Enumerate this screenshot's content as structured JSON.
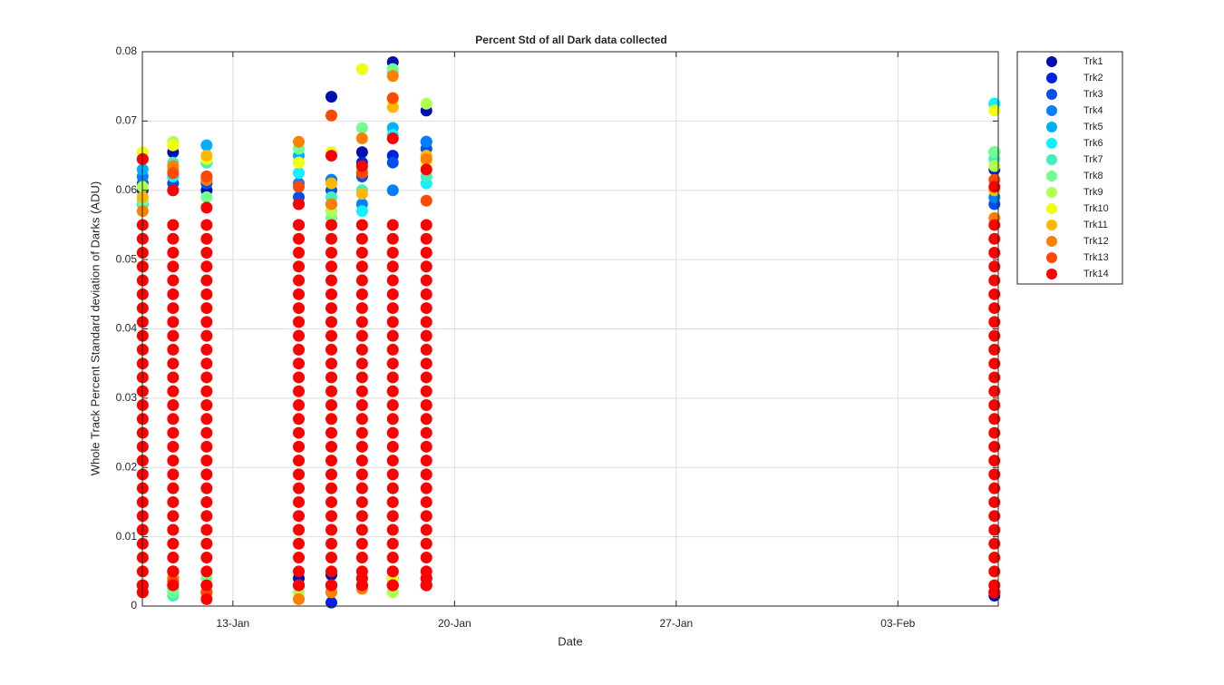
{
  "chart_data": {
    "type": "scatter",
    "title": "Percent Std of all Dark data collected",
    "x_label": "Date",
    "y_label": "Whole Track Percent Standard deviation of Darks (ADU)",
    "xlim": [
      10.14,
      37.17
    ],
    "xticks": [
      {
        "value": 13,
        "label": "13-Jan"
      },
      {
        "value": 20,
        "label": "20-Jan"
      },
      {
        "value": 27,
        "label": "27-Jan"
      },
      {
        "value": 34,
        "label": "03-Feb"
      }
    ],
    "ylim": [
      0,
      0.08
    ],
    "yticks": [
      0,
      0.01,
      0.02,
      0.03,
      0.04,
      0.05,
      0.06,
      0.07,
      0.08
    ],
    "grid": true,
    "legend": "outside-right",
    "series": [
      {
        "name": "Trk1",
        "color": "#0010b0",
        "x": [
          10.15,
          10.15,
          11.11,
          11.11,
          12.17,
          12.17,
          15.08,
          15.08,
          16.11,
          16.11,
          17.08,
          17.08,
          18.05,
          18.05,
          19.11,
          19.11,
          37.05,
          37.05
        ],
        "values": [
          0.058,
          0.003,
          0.0655,
          0.004,
          0.06,
          0.003,
          0.055,
          0.004,
          0.0735,
          0.0045,
          0.0655,
          0.003,
          0.0785,
          0.003,
          0.0715,
          0.004,
          0.0655,
          0.0015
        ]
      },
      {
        "name": "Trk2",
        "color": "#0022e0",
        "x": [
          10.15,
          10.15,
          11.11,
          11.11,
          12.17,
          12.17,
          15.08,
          15.08,
          16.11,
          16.11,
          17.08,
          17.08,
          18.05,
          18.05,
          19.11,
          19.11,
          37.05,
          37.05
        ],
        "values": [
          0.06,
          0.003,
          0.062,
          0.005,
          0.062,
          0.002,
          0.058,
          0.003,
          0.0615,
          0.0005,
          0.064,
          0.004,
          0.065,
          0.004,
          0.067,
          0.003,
          0.063,
          0.002
        ]
      },
      {
        "name": "Trk3",
        "color": "#0050f0",
        "x": [
          10.15,
          10.15,
          11.11,
          11.11,
          12.17,
          12.17,
          15.08,
          15.08,
          16.11,
          16.11,
          17.08,
          17.08,
          18.05,
          18.05,
          19.11,
          19.11,
          37.05,
          37.05
        ],
        "values": [
          0.061,
          0.003,
          0.061,
          0.003,
          0.061,
          0.003,
          0.059,
          0.003,
          0.06,
          0.002,
          0.062,
          0.004,
          0.064,
          0.005,
          0.066,
          0.003,
          0.058,
          0.002
        ]
      },
      {
        "name": "Trk4",
        "color": "#0080ff",
        "x": [
          10.15,
          10.15,
          11.11,
          11.11,
          12.17,
          12.17,
          15.08,
          15.08,
          16.11,
          16.11,
          17.08,
          17.08,
          18.05,
          18.05,
          19.11,
          19.11,
          37.05,
          37.05
        ],
        "values": [
          0.062,
          0.003,
          0.06,
          0.003,
          0.0615,
          0.003,
          0.061,
          0.003,
          0.0615,
          0.003,
          0.058,
          0.004,
          0.06,
          0.004,
          0.067,
          0.003,
          0.059,
          0.003
        ]
      },
      {
        "name": "Trk5",
        "color": "#00b0ff",
        "x": [
          10.15,
          10.15,
          11.11,
          11.11,
          12.17,
          12.17,
          15.08,
          15.08,
          16.11,
          16.11,
          17.08,
          17.08,
          18.05,
          18.05,
          19.11,
          19.11,
          37.05,
          37.05
        ],
        "values": [
          0.063,
          0.002,
          0.063,
          0.002,
          0.0665,
          0.003,
          0.065,
          0.003,
          0.058,
          0.003,
          0.063,
          0.004,
          0.069,
          0.003,
          0.064,
          0.003,
          0.0725,
          0.003
        ]
      },
      {
        "name": "Trk6",
        "color": "#10f0ff",
        "x": [
          10.15,
          10.15,
          11.11,
          11.11,
          12.17,
          12.17,
          15.08,
          15.08,
          16.11,
          16.11,
          17.08,
          17.08,
          18.05,
          18.05,
          19.11,
          19.11,
          37.05,
          37.05
        ],
        "values": [
          0.059,
          0.003,
          0.062,
          0.0025,
          0.064,
          0.003,
          0.0625,
          0.003,
          0.057,
          0.002,
          0.057,
          0.003,
          0.068,
          0.003,
          0.061,
          0.003,
          0.0725,
          0.003
        ]
      },
      {
        "name": "Trk7",
        "color": "#40f0c0",
        "x": [
          10.15,
          10.15,
          11.11,
          11.11,
          12.17,
          12.17,
          15.08,
          15.08,
          16.11,
          16.11,
          17.08,
          17.08,
          18.05,
          18.05,
          19.11,
          19.11,
          37.05,
          37.05
        ],
        "values": [
          0.058,
          0.003,
          0.064,
          0.0015,
          0.064,
          0.003,
          0.064,
          0.003,
          0.059,
          0.003,
          0.06,
          0.004,
          0.077,
          0.003,
          0.062,
          0.003,
          0.0645,
          0.003
        ]
      },
      {
        "name": "Trk8",
        "color": "#70ff90",
        "x": [
          10.15,
          10.15,
          11.11,
          11.11,
          12.17,
          12.17,
          15.08,
          15.08,
          16.11,
          16.11,
          17.08,
          17.08,
          18.05,
          18.05,
          19.11,
          19.11,
          37.05,
          37.05
        ],
        "values": [
          0.0585,
          0.003,
          0.0665,
          0.002,
          0.059,
          0.004,
          0.066,
          0.003,
          0.056,
          0.003,
          0.069,
          0.004,
          0.0775,
          0.002,
          0.063,
          0.003,
          0.0655,
          0.003
        ]
      },
      {
        "name": "Trk9",
        "color": "#b0ff50",
        "x": [
          10.15,
          10.15,
          11.11,
          11.11,
          12.17,
          12.17,
          15.08,
          15.08,
          16.11,
          16.11,
          17.08,
          17.08,
          18.05,
          18.05,
          19.11,
          19.11,
          37.05,
          37.05
        ],
        "values": [
          0.0605,
          0.003,
          0.067,
          0.003,
          0.0645,
          0.003,
          0.064,
          0.002,
          0.057,
          0.003,
          0.063,
          0.003,
          0.073,
          0.002,
          0.0725,
          0.003,
          0.0635,
          0.003
        ]
      },
      {
        "name": "Trk10",
        "color": "#f0ff10",
        "x": [
          10.15,
          10.15,
          11.11,
          11.11,
          12.17,
          12.17,
          15.08,
          15.08,
          16.11,
          16.11,
          17.08,
          17.08,
          18.05,
          18.05,
          19.11,
          19.11,
          37.05,
          37.05
        ],
        "values": [
          0.0655,
          0.003,
          0.0665,
          0.003,
          0.0645,
          0.003,
          0.064,
          0.003,
          0.0655,
          0.003,
          0.0775,
          0.004,
          0.073,
          0.004,
          0.064,
          0.003,
          0.0715,
          0.003
        ]
      },
      {
        "name": "Trk11",
        "color": "#ffb800",
        "x": [
          10.15,
          10.15,
          11.11,
          11.11,
          12.17,
          12.17,
          15.08,
          15.08,
          16.11,
          16.11,
          17.08,
          17.08,
          18.05,
          18.05,
          19.11,
          19.11,
          37.05,
          37.05
        ],
        "values": [
          0.059,
          0.002,
          0.063,
          0.003,
          0.065,
          0.002,
          0.058,
          0.001,
          0.061,
          0.003,
          0.0595,
          0.004,
          0.072,
          0.003,
          0.065,
          0.003,
          0.06,
          0.002
        ]
      },
      {
        "name": "Trk12",
        "color": "#ff8000",
        "x": [
          10.15,
          10.15,
          11.11,
          11.11,
          12.17,
          12.17,
          15.08,
          15.08,
          16.11,
          16.11,
          17.08,
          17.08,
          18.05,
          18.05,
          19.11,
          19.11,
          37.05,
          37.05
        ],
        "values": [
          0.057,
          0.003,
          0.0635,
          0.004,
          0.0615,
          0.002,
          0.067,
          0.001,
          0.058,
          0.002,
          0.0675,
          0.0025,
          0.0765,
          0.003,
          0.0645,
          0.003,
          0.056,
          0.002
        ]
      },
      {
        "name": "Trk13",
        "color": "#ff4800",
        "x": [
          10.15,
          10.15,
          11.11,
          11.11,
          12.17,
          12.17,
          15.08,
          15.08,
          16.11,
          16.11,
          17.08,
          17.08,
          18.05,
          18.05,
          19.11,
          19.11,
          37.05,
          37.05
        ],
        "values": [
          0.0645,
          0.003,
          0.0625,
          0.0035,
          0.062,
          0.002,
          0.0605,
          0.003,
          0.0708,
          0.003,
          0.0625,
          0.003,
          0.0733,
          0.003,
          0.0585,
          0.003,
          0.0615,
          0.002
        ]
      },
      {
        "name": "Trk14",
        "color": "#ff0000",
        "x": [
          10.15,
          10.15,
          10.15,
          10.15,
          10.15,
          10.15,
          10.15,
          10.15,
          10.15,
          10.15,
          10.15,
          10.15,
          10.15,
          10.15,
          10.15,
          10.15,
          10.15,
          10.15,
          10.15,
          10.15,
          10.15,
          10.15,
          10.15,
          10.15,
          10.15,
          10.15,
          10.15,
          10.15,
          10.15,
          11.11,
          11.11,
          11.11,
          11.11,
          11.11,
          11.11,
          11.11,
          11.11,
          11.11,
          11.11,
          11.11,
          11.11,
          11.11,
          11.11,
          11.11,
          11.11,
          11.11,
          11.11,
          11.11,
          11.11,
          11.11,
          11.11,
          11.11,
          11.11,
          11.11,
          11.11,
          11.11,
          11.11,
          11.11,
          12.17,
          12.17,
          12.17,
          12.17,
          12.17,
          12.17,
          12.17,
          12.17,
          12.17,
          12.17,
          12.17,
          12.17,
          12.17,
          12.17,
          12.17,
          12.17,
          12.17,
          12.17,
          12.17,
          12.17,
          12.17,
          12.17,
          12.17,
          12.17,
          12.17,
          12.17,
          12.17,
          12.17,
          12.17,
          15.08,
          15.08,
          15.08,
          15.08,
          15.08,
          15.08,
          15.08,
          15.08,
          15.08,
          15.08,
          15.08,
          15.08,
          15.08,
          15.08,
          15.08,
          15.08,
          15.08,
          15.08,
          15.08,
          15.08,
          15.08,
          15.08,
          15.08,
          15.08,
          15.08,
          15.08,
          15.08,
          15.08,
          15.08,
          16.11,
          16.11,
          16.11,
          16.11,
          16.11,
          16.11,
          16.11,
          16.11,
          16.11,
          16.11,
          16.11,
          16.11,
          16.11,
          16.11,
          16.11,
          16.11,
          16.11,
          16.11,
          16.11,
          16.11,
          16.11,
          16.11,
          16.11,
          16.11,
          16.11,
          16.11,
          16.11,
          16.11,
          16.11,
          17.08,
          17.08,
          17.08,
          17.08,
          17.08,
          17.08,
          17.08,
          17.08,
          17.08,
          17.08,
          17.08,
          17.08,
          17.08,
          17.08,
          17.08,
          17.08,
          17.08,
          17.08,
          17.08,
          17.08,
          17.08,
          17.08,
          17.08,
          17.08,
          17.08,
          17.08,
          17.08,
          17.08,
          17.08,
          18.05,
          18.05,
          18.05,
          18.05,
          18.05,
          18.05,
          18.05,
          18.05,
          18.05,
          18.05,
          18.05,
          18.05,
          18.05,
          18.05,
          18.05,
          18.05,
          18.05,
          18.05,
          18.05,
          18.05,
          18.05,
          18.05,
          18.05,
          18.05,
          18.05,
          18.05,
          18.05,
          18.05,
          18.05,
          19.11,
          19.11,
          19.11,
          19.11,
          19.11,
          19.11,
          19.11,
          19.11,
          19.11,
          19.11,
          19.11,
          19.11,
          19.11,
          19.11,
          19.11,
          19.11,
          19.11,
          19.11,
          19.11,
          19.11,
          19.11,
          19.11,
          19.11,
          19.11,
          19.11,
          19.11,
          19.11,
          19.11,
          19.11,
          37.05,
          37.05,
          37.05,
          37.05,
          37.05,
          37.05,
          37.05,
          37.05,
          37.05,
          37.05,
          37.05,
          37.05,
          37.05,
          37.05,
          37.05,
          37.05,
          37.05,
          37.05,
          37.05,
          37.05,
          37.05,
          37.05,
          37.05,
          37.05,
          37.05,
          37.05,
          37.05,
          37.05,
          37.05
        ],
        "values": [
          0.0645,
          0.002,
          0.003,
          0.005,
          0.007,
          0.009,
          0.011,
          0.013,
          0.015,
          0.017,
          0.019,
          0.021,
          0.023,
          0.025,
          0.027,
          0.029,
          0.031,
          0.033,
          0.035,
          0.037,
          0.039,
          0.041,
          0.043,
          0.045,
          0.047,
          0.049,
          0.051,
          0.053,
          0.055,
          0.06,
          0.005,
          0.003,
          0.005,
          0.007,
          0.009,
          0.011,
          0.013,
          0.015,
          0.017,
          0.019,
          0.021,
          0.023,
          0.025,
          0.027,
          0.029,
          0.031,
          0.033,
          0.035,
          0.037,
          0.039,
          0.041,
          0.043,
          0.045,
          0.047,
          0.049,
          0.051,
          0.053,
          0.055,
          0.0575,
          0.001,
          0.003,
          0.005,
          0.007,
          0.009,
          0.011,
          0.013,
          0.015,
          0.017,
          0.019,
          0.021,
          0.023,
          0.025,
          0.027,
          0.029,
          0.031,
          0.033,
          0.035,
          0.037,
          0.039,
          0.041,
          0.043,
          0.045,
          0.047,
          0.049,
          0.051,
          0.053,
          0.055,
          0.058,
          0.003,
          0.003,
          0.005,
          0.007,
          0.009,
          0.011,
          0.013,
          0.015,
          0.017,
          0.019,
          0.021,
          0.023,
          0.025,
          0.027,
          0.029,
          0.031,
          0.033,
          0.035,
          0.037,
          0.039,
          0.041,
          0.043,
          0.045,
          0.047,
          0.049,
          0.051,
          0.053,
          0.055,
          0.065,
          0.003,
          0.003,
          0.005,
          0.007,
          0.009,
          0.011,
          0.013,
          0.015,
          0.017,
          0.019,
          0.021,
          0.023,
          0.025,
          0.027,
          0.029,
          0.031,
          0.033,
          0.035,
          0.037,
          0.039,
          0.041,
          0.043,
          0.045,
          0.047,
          0.049,
          0.051,
          0.053,
          0.055,
          0.0635,
          0.004,
          0.003,
          0.005,
          0.007,
          0.009,
          0.011,
          0.013,
          0.015,
          0.017,
          0.019,
          0.021,
          0.023,
          0.025,
          0.027,
          0.029,
          0.031,
          0.033,
          0.035,
          0.037,
          0.039,
          0.041,
          0.043,
          0.045,
          0.047,
          0.049,
          0.051,
          0.053,
          0.055,
          0.0675,
          0.003,
          0.003,
          0.005,
          0.007,
          0.009,
          0.011,
          0.013,
          0.015,
          0.017,
          0.019,
          0.021,
          0.023,
          0.025,
          0.027,
          0.029,
          0.031,
          0.033,
          0.035,
          0.037,
          0.039,
          0.041,
          0.043,
          0.045,
          0.047,
          0.049,
          0.051,
          0.053,
          0.055,
          0.063,
          0.004,
          0.003,
          0.005,
          0.007,
          0.009,
          0.011,
          0.013,
          0.015,
          0.017,
          0.019,
          0.021,
          0.023,
          0.025,
          0.027,
          0.029,
          0.031,
          0.033,
          0.035,
          0.037,
          0.039,
          0.041,
          0.043,
          0.045,
          0.047,
          0.049,
          0.051,
          0.053,
          0.055,
          0.0605,
          0.002,
          0.003,
          0.005,
          0.007,
          0.009,
          0.011,
          0.013,
          0.015,
          0.017,
          0.019,
          0.021,
          0.023,
          0.025,
          0.027,
          0.029,
          0.031,
          0.033,
          0.035,
          0.037,
          0.039,
          0.041,
          0.043,
          0.045,
          0.047,
          0.049,
          0.051,
          0.053,
          0.055
        ]
      }
    ]
  }
}
